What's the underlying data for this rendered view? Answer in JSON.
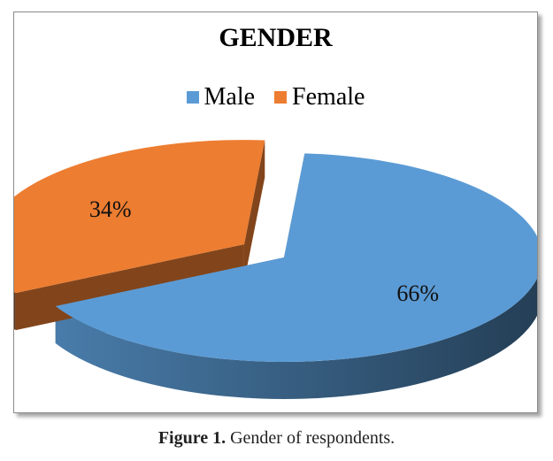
{
  "chart_data": {
    "type": "pie",
    "title": "GENDER",
    "categories": [
      "Male",
      "Female"
    ],
    "values": [
      66,
      34
    ],
    "data_labels": [
      "66%",
      "34%"
    ],
    "colors": [
      "#5b9bd5",
      "#ed7d31"
    ],
    "legend_placement": "top",
    "style": "3d-exploded"
  },
  "caption": {
    "label": "Figure 1.",
    "text": "Gender of respondents."
  }
}
